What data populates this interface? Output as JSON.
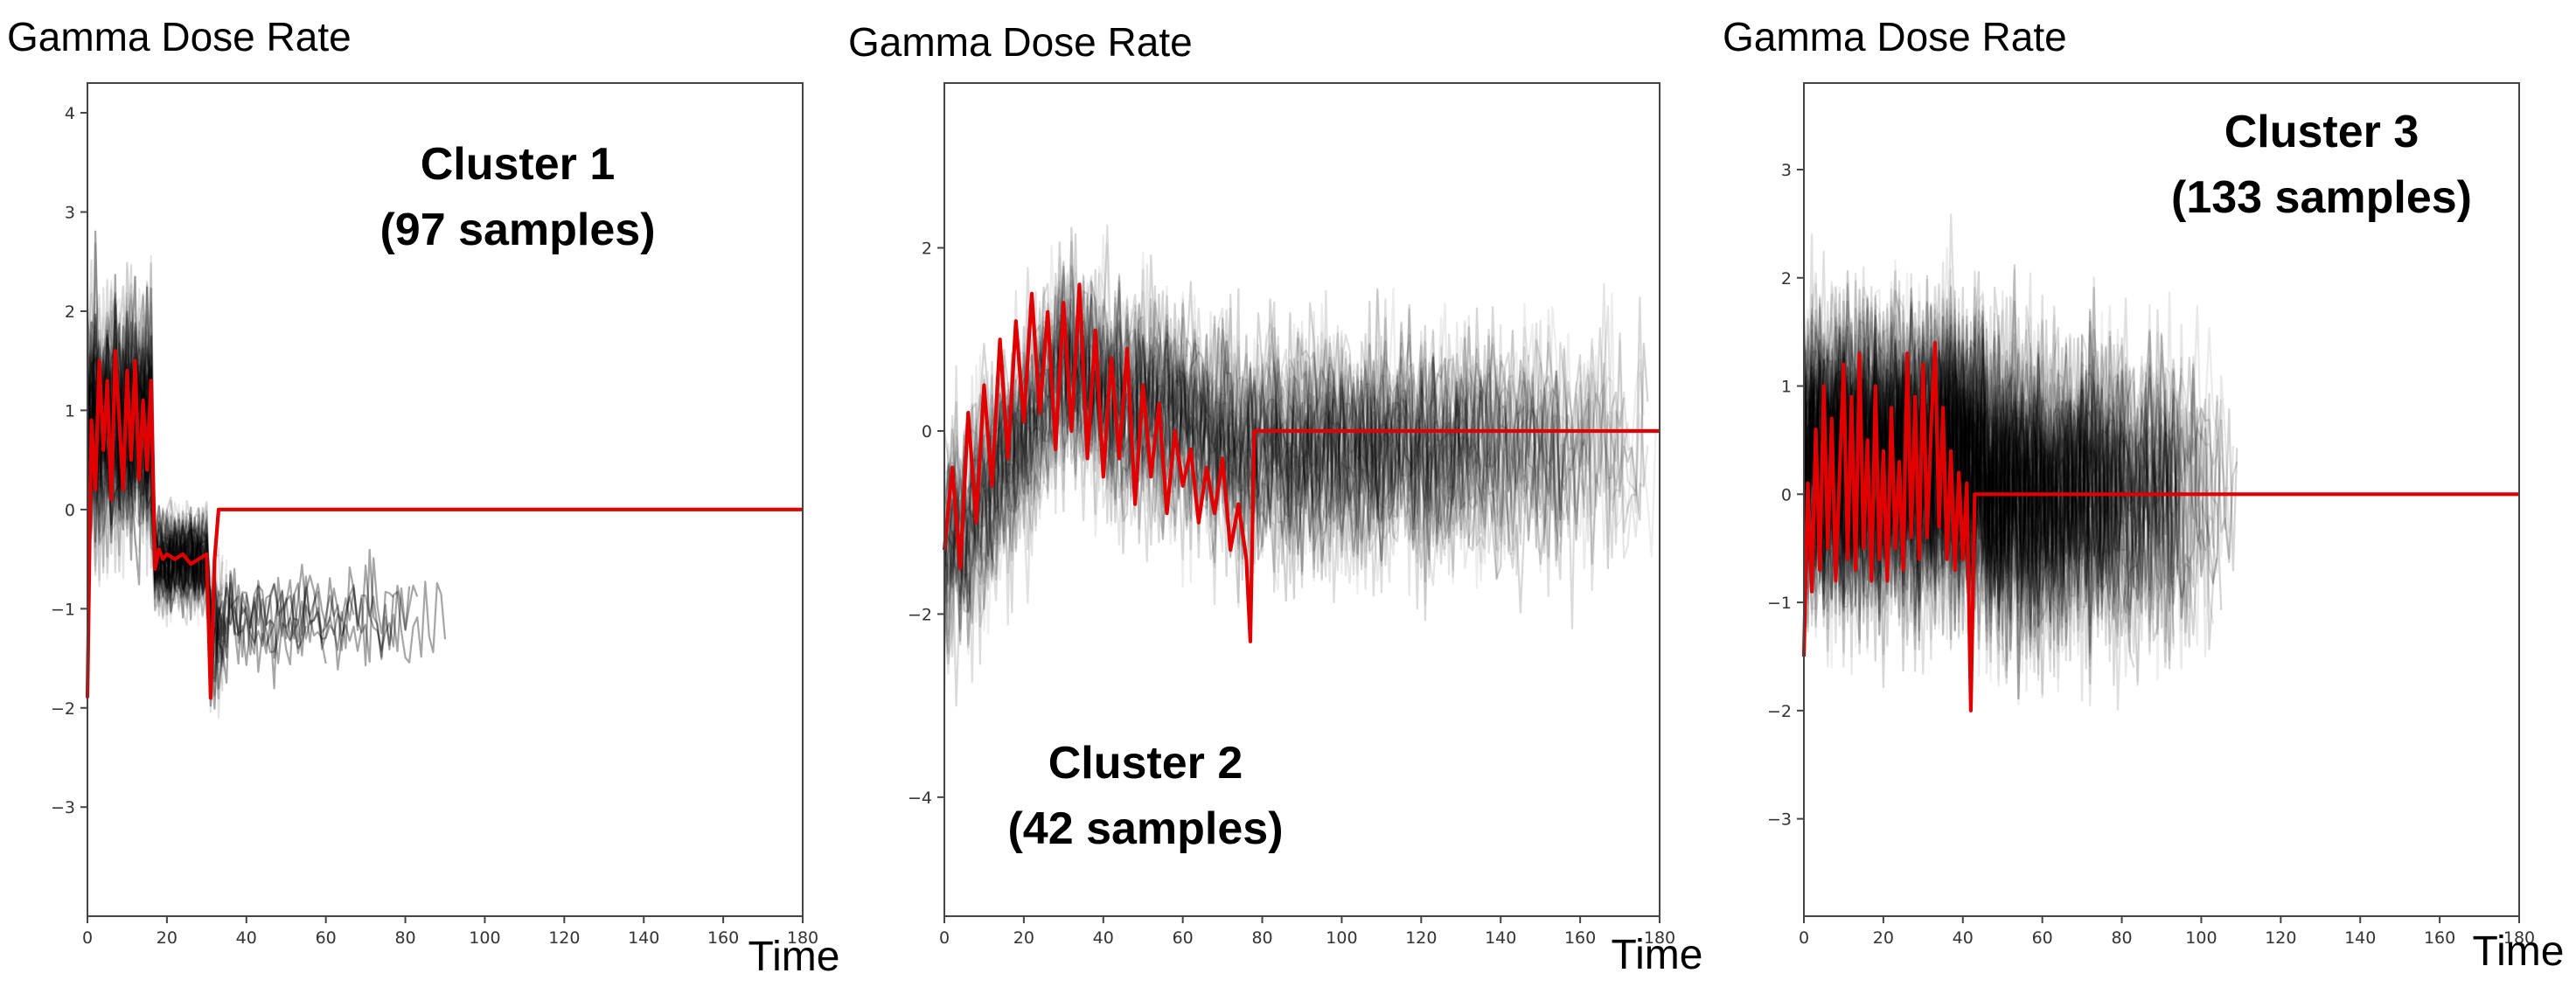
{
  "chart_data": [
    {
      "type": "line",
      "panel": "cluster-1",
      "title": "Gamma Dose Rate",
      "xlabel": "Time",
      "annotation_lines": [
        "Cluster 1",
        "(97 samples)"
      ],
      "xlim": [
        0,
        180
      ],
      "ylim": [
        -4.1,
        4.3
      ],
      "xticks": [
        0,
        20,
        40,
        60,
        80,
        100,
        120,
        140,
        160,
        180
      ],
      "yticks": [
        4,
        3,
        2,
        1,
        0,
        -1,
        -2,
        -3
      ],
      "series": [
        {
          "name": "samples",
          "count": 97,
          "color": "#000000"
        },
        {
          "name": "cluster centroid",
          "color": "#e00000",
          "x": [
            0,
            1,
            2,
            3,
            4,
            5,
            6,
            7,
            8,
            9,
            10,
            11,
            12,
            13,
            14,
            15,
            16,
            17,
            18,
            19,
            20,
            22,
            24,
            26,
            28,
            30,
            31,
            32,
            33,
            34,
            180
          ],
          "values": [
            -1.9,
            0.9,
            0.2,
            1.5,
            0.6,
            1.3,
            0.1,
            1.6,
            0.9,
            0.2,
            1.4,
            0.5,
            1.5,
            0.3,
            1.1,
            0.4,
            1.3,
            -0.6,
            -0.4,
            -0.5,
            -0.45,
            -0.5,
            -0.45,
            -0.55,
            -0.5,
            -0.45,
            -1.9,
            -0.5,
            0.0,
            0.0,
            0.0
          ]
        }
      ]
    },
    {
      "type": "line",
      "panel": "cluster-2",
      "title": "Gamma Dose Rate",
      "xlabel": "Time",
      "annotation_lines": [
        "Cluster 2",
        "(42 samples)"
      ],
      "xlim": [
        0,
        180
      ],
      "ylim": [
        -5.3,
        3.8
      ],
      "xticks": [
        0,
        20,
        40,
        60,
        80,
        100,
        120,
        140,
        160,
        180
      ],
      "yticks": [
        2,
        0,
        -2,
        -4
      ],
      "series": [
        {
          "name": "samples",
          "count": 42,
          "color": "#000000"
        },
        {
          "name": "cluster centroid",
          "color": "#e00000",
          "x": [
            0,
            2,
            4,
            6,
            8,
            10,
            12,
            14,
            16,
            18,
            20,
            22,
            24,
            26,
            28,
            30,
            32,
            34,
            36,
            38,
            40,
            42,
            44,
            46,
            48,
            50,
            52,
            54,
            56,
            58,
            60,
            62,
            64,
            66,
            68,
            70,
            72,
            74,
            76,
            77,
            78,
            180
          ],
          "values": [
            -1.3,
            -0.4,
            -1.5,
            0.2,
            -1.0,
            0.5,
            -0.6,
            1.0,
            -0.3,
            1.2,
            0.1,
            1.5,
            0.2,
            1.3,
            -0.2,
            1.4,
            0.0,
            1.6,
            -0.3,
            1.1,
            -0.5,
            0.8,
            -0.3,
            0.9,
            -0.8,
            0.5,
            -0.5,
            0.3,
            -0.9,
            0.0,
            -0.6,
            -0.2,
            -1.0,
            -0.4,
            -0.9,
            -0.3,
            -1.3,
            -0.8,
            -1.4,
            -2.3,
            0.0,
            0.0
          ]
        }
      ]
    },
    {
      "type": "line",
      "panel": "cluster-3",
      "title": "Gamma Dose Rate",
      "xlabel": "Time",
      "annotation_lines": [
        "Cluster 3",
        "(133 samples)"
      ],
      "xlim": [
        0,
        180
      ],
      "ylim": [
        -3.9,
        3.8
      ],
      "xticks": [
        0,
        20,
        40,
        60,
        80,
        100,
        120,
        140,
        160,
        180
      ],
      "yticks": [
        3,
        2,
        1,
        0,
        -1,
        -2,
        -3
      ],
      "series": [
        {
          "name": "samples",
          "count": 133,
          "color": "#000000"
        },
        {
          "name": "cluster centroid",
          "color": "#e00000",
          "x": [
            0,
            1,
            2,
            3,
            4,
            5,
            6,
            7,
            8,
            9,
            10,
            11,
            12,
            13,
            14,
            15,
            16,
            17,
            18,
            19,
            20,
            21,
            22,
            23,
            24,
            25,
            26,
            27,
            28,
            29,
            30,
            31,
            32,
            33,
            34,
            35,
            36,
            37,
            38,
            39,
            40,
            41,
            42,
            43,
            180
          ],
          "values": [
            -1.5,
            0.1,
            -0.9,
            0.6,
            -0.7,
            1.0,
            -0.5,
            0.7,
            -0.8,
            0.2,
            1.2,
            -0.6,
            0.9,
            -0.7,
            1.3,
            -0.5,
            0.5,
            -0.8,
            1.0,
            -0.6,
            0.4,
            -0.8,
            0.8,
            -0.5,
            0.3,
            -0.7,
            1.3,
            -0.4,
            0.9,
            -0.6,
            1.2,
            -0.4,
            0.6,
            1.4,
            -0.3,
            0.8,
            -0.6,
            0.4,
            -0.7,
            0.2,
            -0.6,
            0.1,
            -2.0,
            0.0,
            0.0
          ]
        }
      ]
    }
  ]
}
